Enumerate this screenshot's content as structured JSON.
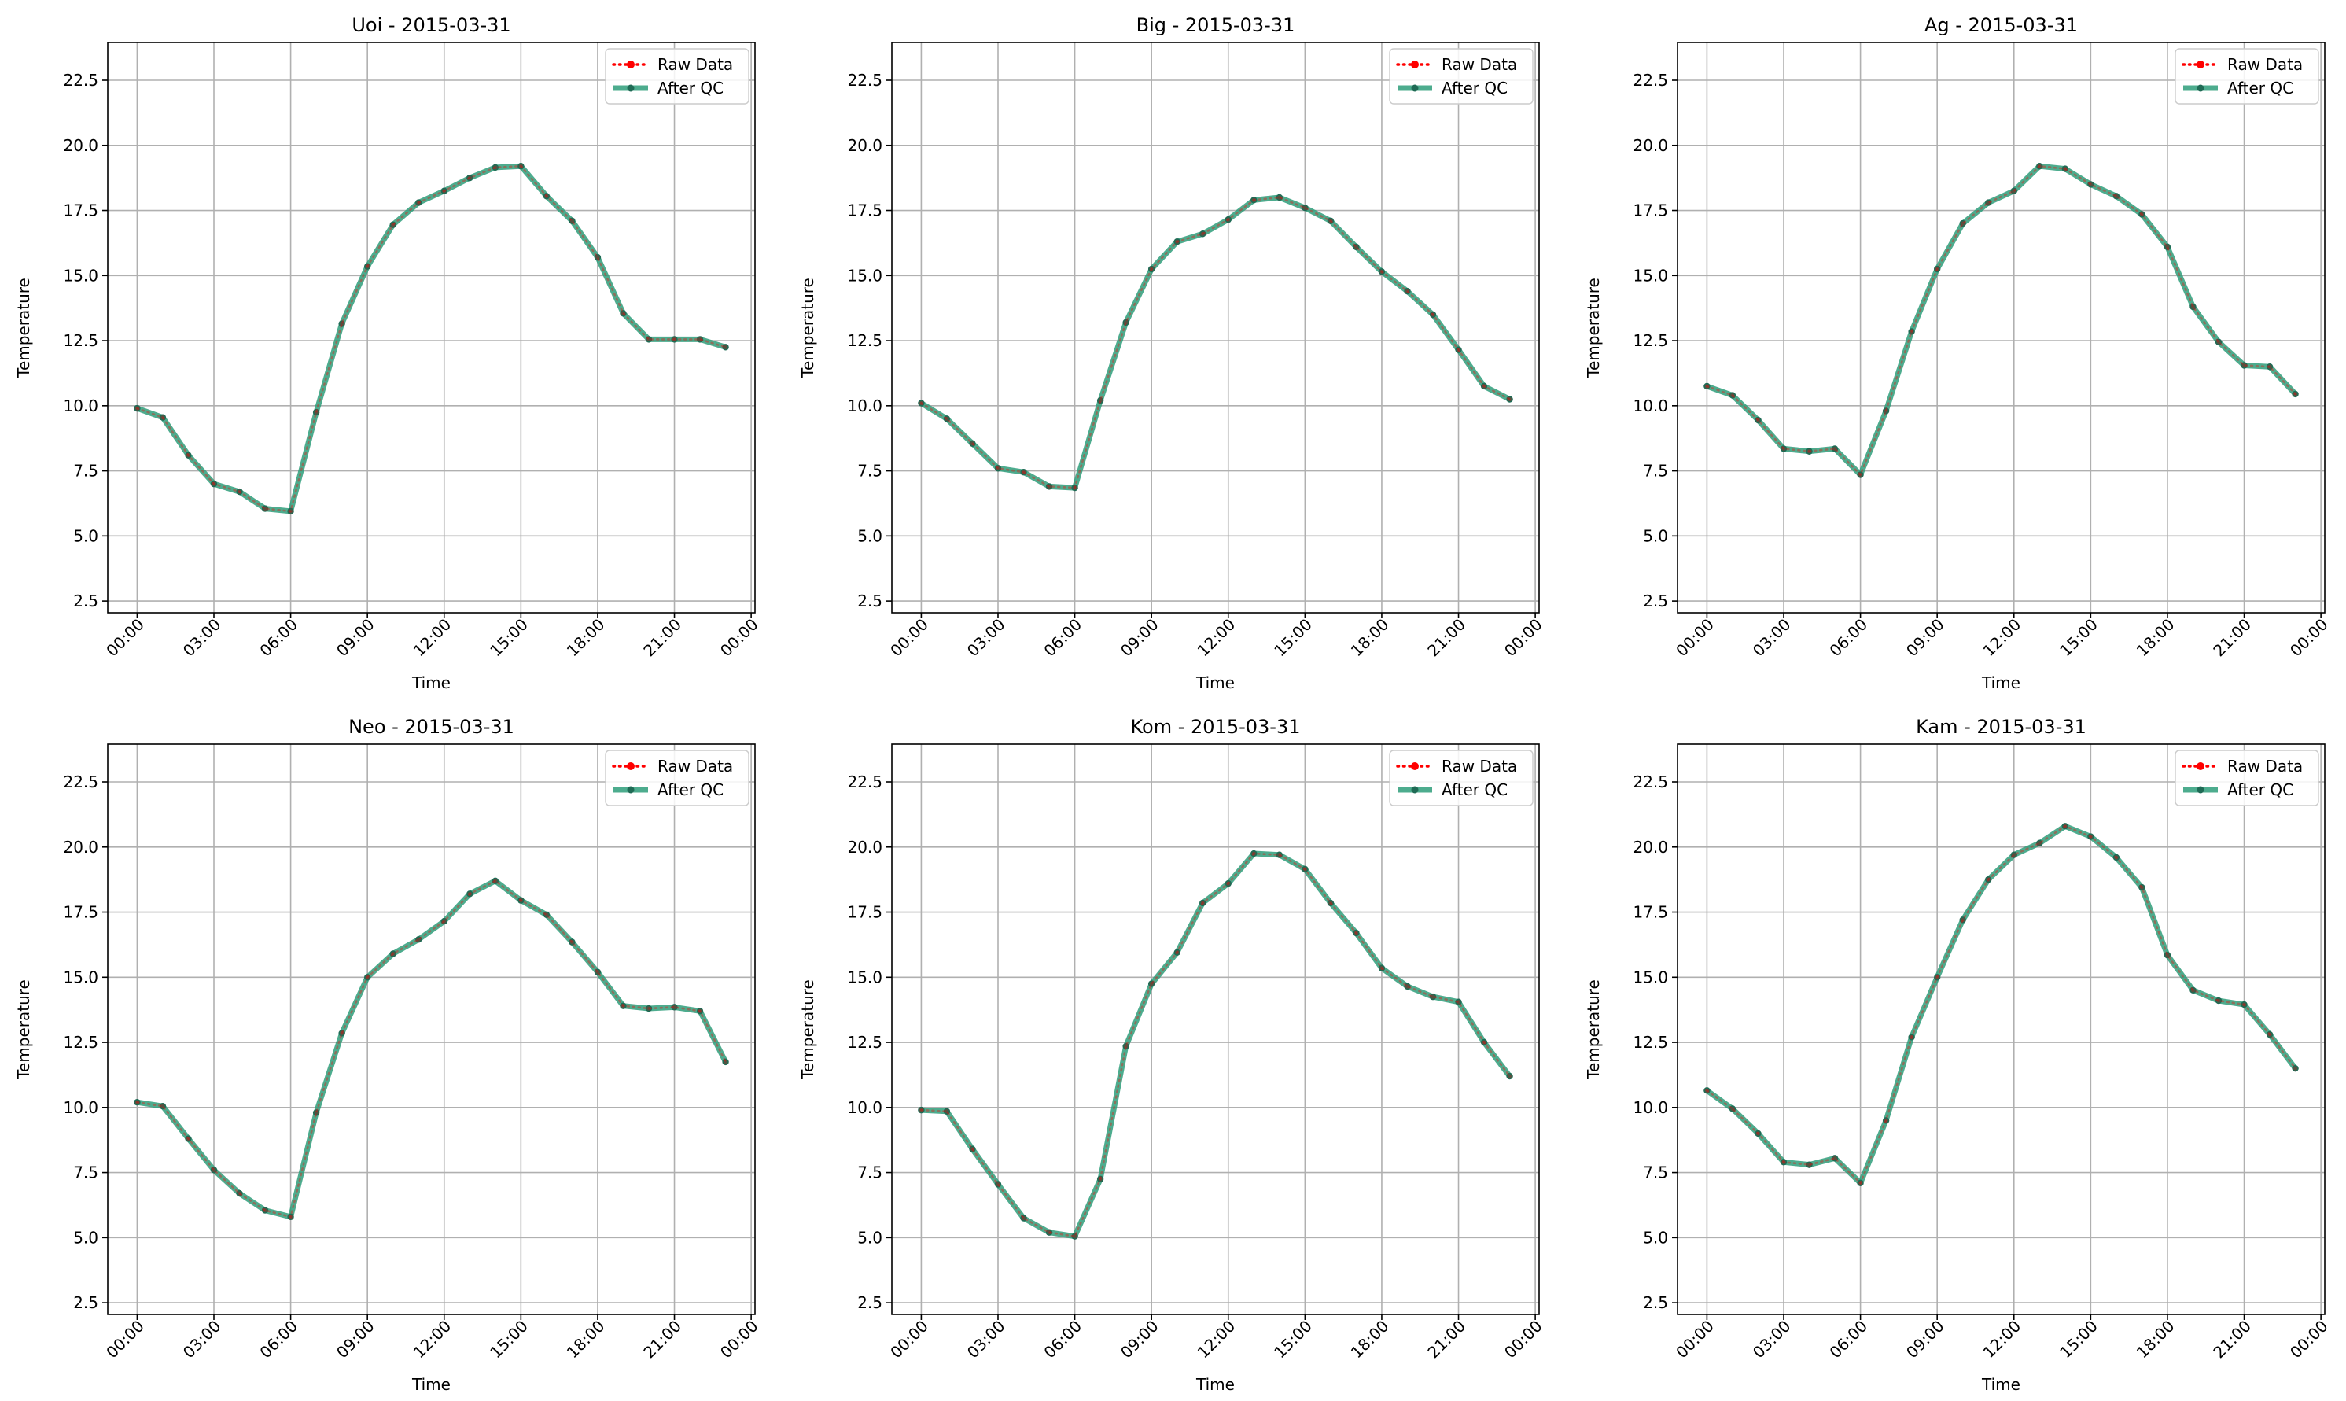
{
  "figure": {
    "background": "#ffffff"
  },
  "colors": {
    "raw": "#ff0000",
    "qc": "#2e9e7a",
    "qc_marker": "#1f6b55",
    "grid": "#b0b0b0",
    "axes": "#000000"
  },
  "chart_data": [
    {
      "type": "line",
      "title": "Uoi - 2015-03-31",
      "xlabel": "Time",
      "ylabel": "Temperature",
      "xlim": [
        -1.15,
        24.15
      ],
      "ylim": [
        2.05,
        23.95
      ],
      "x_ticks": [
        0,
        3,
        6,
        9,
        12,
        15,
        18,
        21,
        24
      ],
      "x_tick_labels": [
        "00:00",
        "03:00",
        "06:00",
        "09:00",
        "12:00",
        "15:00",
        "18:00",
        "21:00",
        "00:00"
      ],
      "y_ticks": [
        2.5,
        5,
        7.5,
        10,
        12.5,
        15,
        17.5,
        20,
        22.5
      ],
      "y_tick_labels": [
        "2.5",
        "5.0",
        "7.5",
        "10.0",
        "12.5",
        "15.0",
        "17.5",
        "20.0",
        "22.5"
      ],
      "grid": true,
      "legend_position": "top-right",
      "x": [
        0,
        1,
        2,
        3,
        4,
        5,
        6,
        7,
        8,
        9,
        10,
        11,
        12,
        13,
        14,
        15,
        16,
        17,
        18,
        19,
        20,
        21,
        22,
        23
      ],
      "series": [
        {
          "name": "Raw Data",
          "values": [
            9.9,
            9.55,
            8.1,
            7.0,
            6.7,
            6.05,
            5.95,
            9.75,
            13.15,
            15.35,
            16.95,
            17.8,
            18.25,
            18.75,
            19.15,
            19.2,
            18.05,
            17.1,
            15.7,
            13.55,
            12.55,
            12.55,
            12.55,
            12.25
          ]
        },
        {
          "name": "After QC",
          "values": [
            9.9,
            9.55,
            8.1,
            7.0,
            6.7,
            6.05,
            5.95,
            9.75,
            13.15,
            15.35,
            16.95,
            17.8,
            18.25,
            18.75,
            19.15,
            19.2,
            18.05,
            17.1,
            15.7,
            13.55,
            12.55,
            12.55,
            12.55,
            12.25
          ]
        }
      ]
    },
    {
      "type": "line",
      "title": "Big - 2015-03-31",
      "xlabel": "Time",
      "ylabel": "Temperature",
      "xlim": [
        -1.15,
        24.15
      ],
      "ylim": [
        2.05,
        23.95
      ],
      "x_ticks": [
        0,
        3,
        6,
        9,
        12,
        15,
        18,
        21,
        24
      ],
      "x_tick_labels": [
        "00:00",
        "03:00",
        "06:00",
        "09:00",
        "12:00",
        "15:00",
        "18:00",
        "21:00",
        "00:00"
      ],
      "y_ticks": [
        2.5,
        5,
        7.5,
        10,
        12.5,
        15,
        17.5,
        20,
        22.5
      ],
      "y_tick_labels": [
        "2.5",
        "5.0",
        "7.5",
        "10.0",
        "12.5",
        "15.0",
        "17.5",
        "20.0",
        "22.5"
      ],
      "grid": true,
      "legend_position": "top-right",
      "x": [
        0,
        1,
        2,
        3,
        4,
        5,
        6,
        7,
        8,
        9,
        10,
        11,
        12,
        13,
        14,
        15,
        16,
        17,
        18,
        19,
        20,
        21,
        22,
        23
      ],
      "series": [
        {
          "name": "Raw Data",
          "values": [
            10.1,
            9.5,
            8.55,
            7.6,
            7.45,
            6.9,
            6.85,
            10.2,
            13.2,
            15.25,
            16.3,
            16.6,
            17.15,
            17.9,
            18.0,
            17.6,
            17.1,
            16.1,
            15.15,
            14.4,
            13.5,
            12.15,
            10.75,
            10.25
          ]
        },
        {
          "name": "After QC",
          "values": [
            10.1,
            9.5,
            8.55,
            7.6,
            7.45,
            6.9,
            6.85,
            10.2,
            13.2,
            15.25,
            16.3,
            16.6,
            17.15,
            17.9,
            18.0,
            17.6,
            17.1,
            16.1,
            15.15,
            14.4,
            13.5,
            12.15,
            10.75,
            10.25
          ]
        }
      ]
    },
    {
      "type": "line",
      "title": "Ag - 2015-03-31",
      "xlabel": "Time",
      "ylabel": "Temperature",
      "xlim": [
        -1.15,
        24.15
      ],
      "ylim": [
        2.05,
        23.95
      ],
      "x_ticks": [
        0,
        3,
        6,
        9,
        12,
        15,
        18,
        21,
        24
      ],
      "x_tick_labels": [
        "00:00",
        "03:00",
        "06:00",
        "09:00",
        "12:00",
        "15:00",
        "18:00",
        "21:00",
        "00:00"
      ],
      "y_ticks": [
        2.5,
        5,
        7.5,
        10,
        12.5,
        15,
        17.5,
        20,
        22.5
      ],
      "y_tick_labels": [
        "2.5",
        "5.0",
        "7.5",
        "10.0",
        "12.5",
        "15.0",
        "17.5",
        "20.0",
        "22.5"
      ],
      "grid": true,
      "legend_position": "top-right",
      "x": [
        0,
        1,
        2,
        3,
        4,
        5,
        6,
        7,
        8,
        9,
        10,
        11,
        12,
        13,
        14,
        15,
        16,
        17,
        18,
        19,
        20,
        21,
        22,
        23
      ],
      "series": [
        {
          "name": "Raw Data",
          "values": [
            10.75,
            10.4,
            9.45,
            8.35,
            8.25,
            8.35,
            7.35,
            9.8,
            12.85,
            15.25,
            17.0,
            17.8,
            18.25,
            19.2,
            19.1,
            18.5,
            18.05,
            17.35,
            16.1,
            13.8,
            12.45,
            11.55,
            11.5,
            10.45
          ]
        },
        {
          "name": "After QC",
          "values": [
            10.75,
            10.4,
            9.45,
            8.35,
            8.25,
            8.35,
            7.35,
            9.8,
            12.85,
            15.25,
            17.0,
            17.8,
            18.25,
            19.2,
            19.1,
            18.5,
            18.05,
            17.35,
            16.1,
            13.8,
            12.45,
            11.55,
            11.5,
            10.45
          ]
        }
      ]
    },
    {
      "type": "line",
      "title": "Neo - 2015-03-31",
      "xlabel": "Time",
      "ylabel": "Temperature",
      "xlim": [
        -1.15,
        24.15
      ],
      "ylim": [
        2.05,
        23.95
      ],
      "x_ticks": [
        0,
        3,
        6,
        9,
        12,
        15,
        18,
        21,
        24
      ],
      "x_tick_labels": [
        "00:00",
        "03:00",
        "06:00",
        "09:00",
        "12:00",
        "15:00",
        "18:00",
        "21:00",
        "00:00"
      ],
      "y_ticks": [
        2.5,
        5,
        7.5,
        10,
        12.5,
        15,
        17.5,
        20,
        22.5
      ],
      "y_tick_labels": [
        "2.5",
        "5.0",
        "7.5",
        "10.0",
        "12.5",
        "15.0",
        "17.5",
        "20.0",
        "22.5"
      ],
      "grid": true,
      "legend_position": "top-right",
      "x": [
        0,
        1,
        2,
        3,
        4,
        5,
        6,
        7,
        8,
        9,
        10,
        11,
        12,
        13,
        14,
        15,
        16,
        17,
        18,
        19,
        20,
        21,
        22,
        23
      ],
      "series": [
        {
          "name": "Raw Data",
          "values": [
            10.2,
            10.05,
            8.8,
            7.6,
            6.7,
            6.05,
            5.8,
            9.8,
            12.85,
            15.0,
            15.9,
            16.45,
            17.15,
            18.2,
            18.7,
            17.95,
            17.4,
            16.35,
            15.2,
            13.9,
            13.8,
            13.85,
            13.7,
            11.75
          ]
        },
        {
          "name": "After QC",
          "values": [
            10.2,
            10.05,
            8.8,
            7.6,
            6.7,
            6.05,
            5.8,
            9.8,
            12.85,
            15.0,
            15.9,
            16.45,
            17.15,
            18.2,
            18.7,
            17.95,
            17.4,
            16.35,
            15.2,
            13.9,
            13.8,
            13.85,
            13.7,
            11.75
          ]
        }
      ]
    },
    {
      "type": "line",
      "title": "Kom - 2015-03-31",
      "xlabel": "Time",
      "ylabel": "Temperature",
      "xlim": [
        -1.15,
        24.15
      ],
      "ylim": [
        2.05,
        23.95
      ],
      "x_ticks": [
        0,
        3,
        6,
        9,
        12,
        15,
        18,
        21,
        24
      ],
      "x_tick_labels": [
        "00:00",
        "03:00",
        "06:00",
        "09:00",
        "12:00",
        "15:00",
        "18:00",
        "21:00",
        "00:00"
      ],
      "y_ticks": [
        2.5,
        5,
        7.5,
        10,
        12.5,
        15,
        17.5,
        20,
        22.5
      ],
      "y_tick_labels": [
        "2.5",
        "5.0",
        "7.5",
        "10.0",
        "12.5",
        "15.0",
        "17.5",
        "20.0",
        "22.5"
      ],
      "grid": true,
      "legend_position": "top-right",
      "x": [
        0,
        1,
        2,
        3,
        4,
        5,
        6,
        7,
        8,
        9,
        10,
        11,
        12,
        13,
        14,
        15,
        16,
        17,
        18,
        19,
        20,
        21,
        22,
        23
      ],
      "series": [
        {
          "name": "Raw Data",
          "values": [
            9.9,
            9.85,
            8.4,
            7.05,
            5.75,
            5.2,
            5.05,
            7.25,
            12.35,
            14.75,
            15.95,
            17.85,
            18.6,
            19.75,
            19.7,
            19.15,
            17.85,
            16.7,
            15.35,
            14.65,
            14.25,
            14.05,
            12.5,
            11.2
          ]
        },
        {
          "name": "After QC",
          "values": [
            9.9,
            9.85,
            8.4,
            7.05,
            5.75,
            5.2,
            5.05,
            7.25,
            12.35,
            14.75,
            15.95,
            17.85,
            18.6,
            19.75,
            19.7,
            19.15,
            17.85,
            16.7,
            15.35,
            14.65,
            14.25,
            14.05,
            12.5,
            11.2
          ]
        }
      ]
    },
    {
      "type": "line",
      "title": "Kam - 2015-03-31",
      "xlabel": "Time",
      "ylabel": "Temperature",
      "xlim": [
        -1.15,
        24.15
      ],
      "ylim": [
        2.05,
        23.95
      ],
      "x_ticks": [
        0,
        3,
        6,
        9,
        12,
        15,
        18,
        21,
        24
      ],
      "x_tick_labels": [
        "00:00",
        "03:00",
        "06:00",
        "09:00",
        "12:00",
        "15:00",
        "18:00",
        "21:00",
        "00:00"
      ],
      "y_ticks": [
        2.5,
        5,
        7.5,
        10,
        12.5,
        15,
        17.5,
        20,
        22.5
      ],
      "y_tick_labels": [
        "2.5",
        "5.0",
        "7.5",
        "10.0",
        "12.5",
        "15.0",
        "17.5",
        "20.0",
        "22.5"
      ],
      "grid": true,
      "legend_position": "top-right",
      "x": [
        0,
        1,
        2,
        3,
        4,
        5,
        6,
        7,
        8,
        9,
        10,
        11,
        12,
        13,
        14,
        15,
        16,
        17,
        18,
        19,
        20,
        21,
        22,
        23
      ],
      "series": [
        {
          "name": "Raw Data",
          "values": [
            10.65,
            9.95,
            9.0,
            7.9,
            7.8,
            8.05,
            7.1,
            9.5,
            12.7,
            15.0,
            17.2,
            18.75,
            19.7,
            20.15,
            20.8,
            20.4,
            19.6,
            18.45,
            15.85,
            14.5,
            14.1,
            13.95,
            12.8,
            11.5
          ]
        },
        {
          "name": "After QC",
          "values": [
            10.65,
            9.95,
            9.0,
            7.9,
            7.8,
            8.05,
            7.1,
            9.5,
            12.7,
            15.0,
            17.2,
            18.75,
            19.7,
            20.15,
            20.8,
            20.4,
            19.6,
            18.45,
            15.85,
            14.5,
            14.1,
            13.95,
            12.8,
            11.5
          ]
        }
      ]
    }
  ]
}
